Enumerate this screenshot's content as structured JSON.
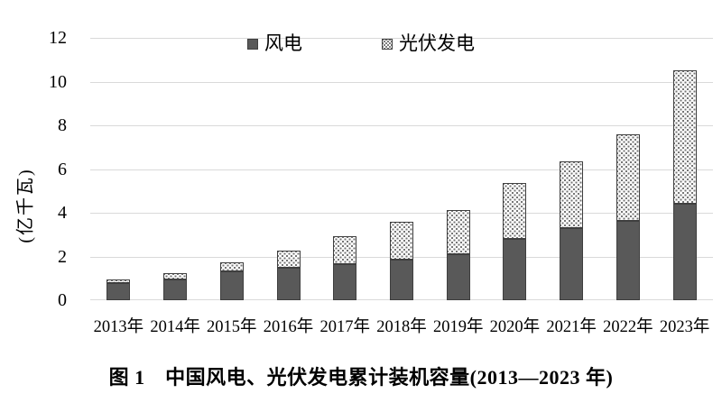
{
  "figure": {
    "caption": "图 1　中国风电、光伏发电累计装机容量(2013—2023 年)"
  },
  "chart_data": {
    "type": "bar",
    "stacked": true,
    "title": "",
    "categories": [
      "2013年",
      "2014年",
      "2015年",
      "2016年",
      "2017年",
      "2018年",
      "2019年",
      "2020年",
      "2021年",
      "2022年",
      "2023年"
    ],
    "series": [
      {
        "name": "风电",
        "pattern": "solid",
        "color": "#595959",
        "values": [
          0.77,
          0.96,
          1.31,
          1.49,
          1.64,
          1.84,
          2.1,
          2.82,
          3.28,
          3.65,
          4.41
        ]
      },
      {
        "name": "光伏发电",
        "pattern": "dotted",
        "color": "#ffffff",
        "dot_color": "#757575",
        "values": [
          0.19,
          0.28,
          0.43,
          0.77,
          1.3,
          1.74,
          2.04,
          2.53,
          3.06,
          3.93,
          6.09
        ]
      }
    ],
    "xlabel": "",
    "ylabel": "(亿千瓦)",
    "yticks": [
      0,
      2,
      4,
      6,
      8,
      10,
      12
    ],
    "ylim": [
      0,
      12
    ],
    "grid": true,
    "legend_position": "top-center",
    "colors": {
      "bar_border": "#3f3f3f",
      "gridline": "#d9d9d9",
      "text": "#000000"
    }
  }
}
